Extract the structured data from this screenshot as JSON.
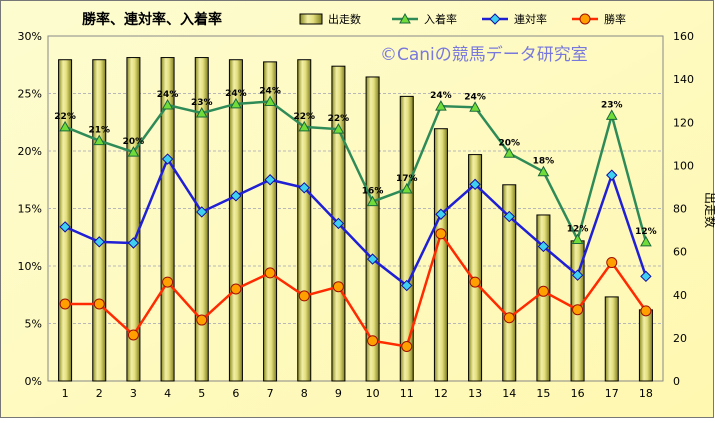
{
  "chart_data": {
    "type": "bar+line",
    "title": "勝率、連対率、入着率",
    "watermark": "©Caniの競馬データ研究室",
    "categories": [
      "1",
      "2",
      "3",
      "4",
      "5",
      "6",
      "7",
      "8",
      "9",
      "10",
      "11",
      "12",
      "13",
      "14",
      "15",
      "16",
      "17",
      "18"
    ],
    "y_left": {
      "ticks": [
        "0%",
        "5%",
        "10%",
        "15%",
        "20%",
        "25%",
        "30%"
      ],
      "range": [
        0,
        30
      ]
    },
    "y_right": {
      "label": "出走数",
      "ticks": [
        "0",
        "20",
        "40",
        "60",
        "80",
        "100",
        "120",
        "140",
        "160"
      ],
      "range": [
        0,
        160
      ]
    },
    "bars": {
      "name": "出走数",
      "values": [
        149,
        149,
        150,
        150,
        150,
        149,
        148,
        149,
        146,
        141,
        132,
        117,
        105,
        91,
        77,
        65,
        39,
        33
      ],
      "color": "#e6e28a"
    },
    "series": [
      {
        "name": "入着率",
        "color": "#2e8b57",
        "marker_color": "#6fdc3a",
        "values": [
          22.1,
          20.9,
          19.9,
          24.0,
          23.3,
          24.1,
          24.3,
          22.1,
          21.9,
          15.6,
          16.7,
          23.9,
          23.8,
          19.8,
          18.2,
          12.3,
          23.1,
          12.1
        ],
        "labels": [
          "22%",
          "21%",
          "20%",
          "24%",
          "23%",
          "24%",
          "24%",
          "22%",
          "22%",
          "16%",
          "17%",
          "24%",
          "24%",
          "20%",
          "18%",
          "12%",
          "23%",
          "12%"
        ]
      },
      {
        "name": "連対率",
        "color": "#1f1fd6",
        "marker_color": "#3fd0f0",
        "values": [
          13.4,
          12.1,
          12.0,
          19.3,
          14.7,
          16.1,
          17.5,
          16.8,
          13.7,
          10.6,
          8.3,
          14.5,
          17.1,
          14.3,
          11.7,
          9.2,
          17.9,
          9.1
        ]
      },
      {
        "name": "勝率",
        "color": "#ff2a00",
        "marker_color": "#ffa000",
        "values": [
          6.7,
          6.7,
          4.0,
          8.6,
          5.3,
          8.0,
          9.4,
          7.4,
          8.2,
          3.5,
          3.0,
          12.8,
          8.6,
          5.5,
          7.8,
          6.2,
          10.3,
          6.1
        ]
      }
    ],
    "grid": true,
    "legend": "top"
  }
}
